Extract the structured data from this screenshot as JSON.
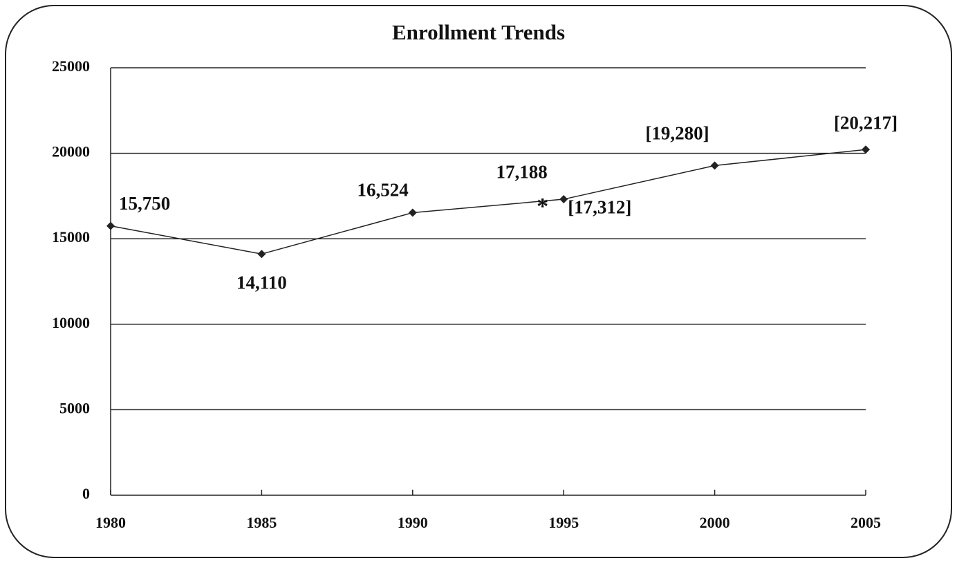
{
  "chart_data": {
    "type": "line",
    "title": "Enrollment Trends",
    "x": [
      1980,
      1985,
      1990,
      1995,
      2000,
      2005
    ],
    "series": [
      {
        "name": "Enrollment",
        "color": "#222222",
        "values": [
          15750,
          14110,
          16524,
          17312,
          19280,
          20217
        ],
        "value_labels": [
          "15,750",
          "14,110",
          "16,524",
          "[17,312]",
          "[19,280]",
          "[20,217]"
        ]
      }
    ],
    "annotations": [
      {
        "x": 1994.3,
        "y": 17188,
        "label": "17,188",
        "marker": "*"
      }
    ],
    "xlim": [
      1980,
      2005
    ],
    "xticks": [
      1980,
      1985,
      1990,
      1995,
      2000,
      2005
    ],
    "ylim": [
      0,
      25000
    ],
    "yticks": [
      0,
      5000,
      10000,
      15000,
      20000,
      25000
    ],
    "grid": true
  }
}
